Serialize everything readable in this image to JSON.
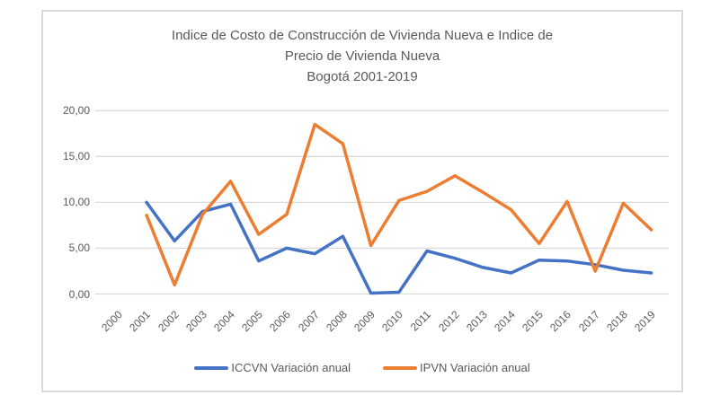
{
  "chart": {
    "title_lines": [
      "Indice de Costo de Construcción de Vivienda Nueva e Indice de",
      "Precio de Vivienda Nueva",
      "Bogotá 2001-2019"
    ],
    "colors": {
      "iccvn_line": "#4472C4",
      "ipvn_line": "#ED7D31",
      "gridline": "#D9D9D9",
      "frame_border": "#D9D9D9",
      "text": "#595959"
    }
  },
  "chart_data": {
    "type": "line",
    "title": "Indice de Costo de Construcción de Vivienda Nueva e Indice de Precio de Vivienda Nueva Bogotá 2001-2019",
    "categories": [
      "2000",
      "2001",
      "2002",
      "2003",
      "2004",
      "2005",
      "2006",
      "2007",
      "2008",
      "2009",
      "2010",
      "2011",
      "2012",
      "2013",
      "2014",
      "2015",
      "2016",
      "2017",
      "2018",
      "2019"
    ],
    "series": [
      {
        "name": "ICCVN Variación anual",
        "color": "#4472C4",
        "x": [
          2001,
          2002,
          2003,
          2004,
          2005,
          2006,
          2007,
          2008,
          2009,
          2010,
          2011,
          2012,
          2013,
          2014,
          2015,
          2016,
          2017,
          2018,
          2019
        ],
        "values": [
          10.0,
          5.8,
          9.0,
          9.8,
          3.6,
          5.0,
          4.4,
          6.3,
          0.1,
          0.2,
          4.7,
          3.9,
          2.9,
          2.3,
          3.7,
          3.6,
          3.2,
          2.6,
          2.3
        ]
      },
      {
        "name": "IPVN Variación anual",
        "color": "#ED7D31",
        "x": [
          2001,
          2002,
          2003,
          2004,
          2005,
          2006,
          2007,
          2008,
          2009,
          2010,
          2011,
          2012,
          2013,
          2014,
          2015,
          2016,
          2017,
          2018,
          2019
        ],
        "values": [
          8.6,
          1.0,
          8.7,
          12.3,
          6.5,
          8.7,
          18.5,
          16.4,
          5.3,
          10.2,
          11.2,
          12.9,
          11.1,
          9.2,
          5.5,
          10.1,
          2.5,
          9.9,
          7.0
        ]
      }
    ],
    "ylim": [
      0,
      20
    ],
    "yticks": [
      0,
      5,
      10,
      15,
      20
    ],
    "ytick_labels": [
      "0,00",
      "5,00",
      "10,00",
      "15,00",
      "20,00"
    ],
    "xlabel": "",
    "ylabel": "",
    "grid": true,
    "legend_position": "bottom"
  }
}
